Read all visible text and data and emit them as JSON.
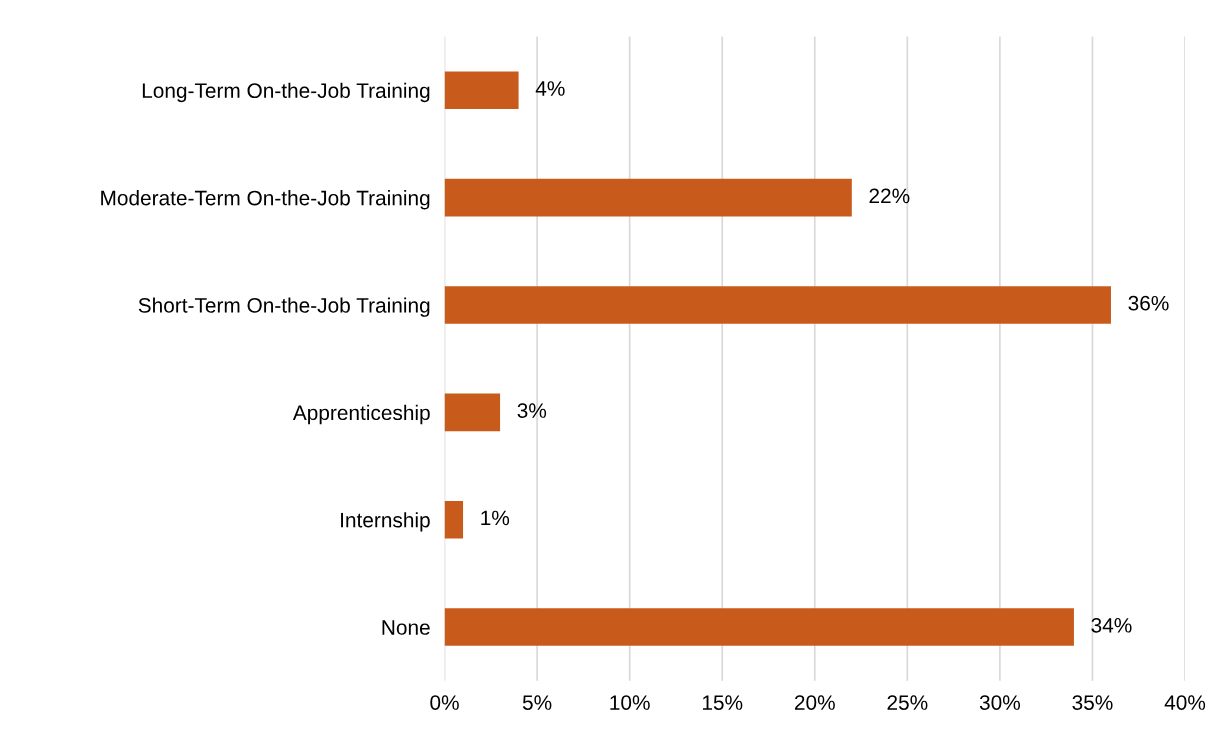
{
  "chart_data": {
    "type": "bar",
    "orientation": "horizontal",
    "categories": [
      "Long-Term On-the-Job Training",
      "Moderate-Term On-the-Job Training",
      "Short-Term On-the-Job Training",
      "Apprenticeship",
      "Internship",
      "None"
    ],
    "values": [
      4,
      22,
      36,
      3,
      1,
      34
    ],
    "value_labels": [
      "4%",
      "22%",
      "36%",
      "3%",
      "1%",
      "34%"
    ],
    "color": "#c85b1c",
    "xlim": [
      0,
      40
    ],
    "xticks": [
      {
        "value": 0,
        "label": "0%"
      },
      {
        "value": 5,
        "label": "5%"
      },
      {
        "value": 10,
        "label": "10%"
      },
      {
        "value": 15,
        "label": "15%"
      },
      {
        "value": 20,
        "label": "20%"
      },
      {
        "value": 25,
        "label": "25%"
      },
      {
        "value": 30,
        "label": "30%"
      },
      {
        "value": 35,
        "label": "35%"
      },
      {
        "value": 40,
        "label": "40%"
      }
    ],
    "grid": "x",
    "legend": false
  }
}
